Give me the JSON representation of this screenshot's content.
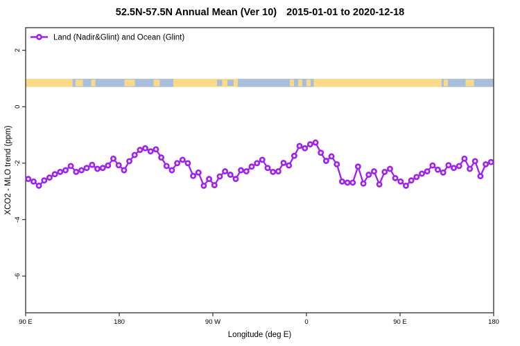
{
  "title": {
    "region": "52.5N-57.5N Annual Mean (Ver 10)",
    "dates": "2015-01-01 to 2020-12-18"
  },
  "colors": {
    "series": "#A020F0",
    "marker_fill": "#ffffff",
    "land": "#FAD989",
    "ocean": "#A9BEDA",
    "axis": "#303030",
    "text": "#000000"
  },
  "chart_data": {
    "type": "line",
    "title": "52.5N-57.5N Annual Mean (Ver 10)  2015-01-01 to 2020-12-18",
    "xlabel": "Longitude (deg E)",
    "ylabel": "XCO2 - MLO trend (ppm)",
    "grid": false,
    "x_axis": {
      "range": [
        90,
        540
      ],
      "ticks": [
        90,
        180,
        270,
        360,
        450,
        540
      ],
      "tick_labels": [
        "90 E",
        "180",
        "90 W",
        "0",
        "90 E",
        "180"
      ]
    },
    "y_axis": {
      "range": [
        -7.3,
        2.8
      ],
      "ticks": [
        2,
        0,
        -2,
        -4,
        -6
      ],
      "tick_labels": [
        "2",
        "0",
        "-2",
        "-4",
        "-6"
      ]
    },
    "legend": {
      "position": "top-left",
      "entries": [
        {
          "label": "Land (Nadir&Glint) and Ocean (Glint)",
          "color": "#A020F0",
          "marker": "open-circle"
        }
      ]
    },
    "map_band": {
      "description": "land/ocean strip along the 52.5N-57.5N latitude band",
      "y_range": [
        0.7,
        0.99
      ],
      "land_color": "#FAD989",
      "ocean_color": "#A9BEDA",
      "segments": [
        {
          "from": 90,
          "to": 135,
          "type": "land"
        },
        {
          "from": 135,
          "to": 232,
          "type": "ocean"
        },
        {
          "from": 232,
          "to": 294,
          "type": "land"
        },
        {
          "from": 294,
          "to": 367,
          "type": "ocean"
        },
        {
          "from": 367,
          "to": 490,
          "type": "land"
        },
        {
          "from": 490,
          "to": 540,
          "type": "ocean"
        }
      ],
      "islands": [
        [
          138,
          145
        ],
        [
          153,
          157
        ],
        [
          185,
          195
        ],
        [
          213,
          219
        ],
        [
          344,
          348
        ],
        [
          352,
          356
        ],
        [
          360,
          364
        ],
        [
          492,
          496
        ],
        [
          513,
          521
        ]
      ],
      "lakes": [
        [
          274,
          279
        ],
        [
          284,
          290
        ]
      ]
    },
    "series": [
      {
        "name": "Land (Nadir&Glint) and Ocean (Glint)",
        "color": "#A020F0",
        "marker": "open-circle",
        "x_range": [
          92.5,
          537.5
        ],
        "values": [
          -2.56,
          -2.65,
          -2.8,
          -2.61,
          -2.51,
          -2.39,
          -2.31,
          -2.25,
          -2.1,
          -2.31,
          -2.25,
          -2.17,
          -2.06,
          -2.2,
          -2.17,
          -2.08,
          -1.84,
          -2.07,
          -2.25,
          -1.93,
          -1.71,
          -1.53,
          -1.47,
          -1.58,
          -1.51,
          -1.8,
          -2.1,
          -2.25,
          -2.0,
          -1.88,
          -2.0,
          -2.45,
          -2.33,
          -2.8,
          -2.56,
          -2.78,
          -2.47,
          -2.29,
          -2.41,
          -2.56,
          -2.25,
          -2.29,
          -2.12,
          -2.0,
          -1.88,
          -2.17,
          -2.31,
          -2.29,
          -1.99,
          -2.08,
          -1.74,
          -1.39,
          -1.47,
          -1.33,
          -1.27,
          -1.63,
          -1.92,
          -1.76,
          -2.04,
          -2.65,
          -2.69,
          -2.69,
          -2.12,
          -2.72,
          -2.41,
          -2.29,
          -2.75,
          -2.31,
          -2.2,
          -2.53,
          -2.65,
          -2.8,
          -2.61,
          -2.49,
          -2.37,
          -2.29,
          -2.08,
          -2.23,
          -2.33,
          -2.07,
          -2.17,
          -2.1,
          -1.84,
          -2.2,
          -1.93,
          -2.46,
          -2.04,
          -1.96
        ]
      }
    ]
  }
}
